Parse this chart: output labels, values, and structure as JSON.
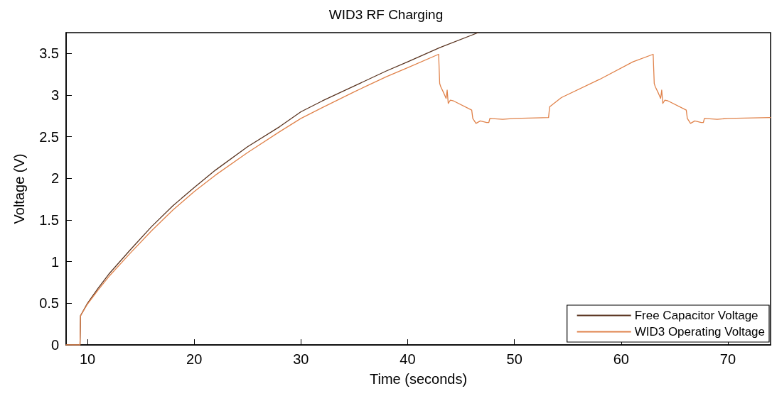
{
  "chart_data": {
    "type": "line",
    "title": "WID3 RF Charging",
    "xlabel": "Time (seconds)",
    "ylabel": "Voltage (V)",
    "xlim": [
      8,
      74
    ],
    "xticks": [
      10,
      20,
      30,
      40,
      50,
      60,
      70
    ],
    "ylim": [
      0,
      3.75
    ],
    "yticks": [
      0,
      0.5,
      1,
      1.5,
      2,
      2.5,
      3,
      3.5
    ],
    "grid": false,
    "legend": "bottom right",
    "marker": "none",
    "line_style": "solid",
    "series": [
      {
        "name": "Free Capacitor Voltage",
        "color": "#5a3420",
        "x": [
          8,
          9.3,
          9.35,
          10,
          11,
          12,
          14,
          16,
          18,
          20,
          22,
          25,
          28,
          30,
          32,
          35,
          38,
          40,
          43,
          46.6
        ],
        "values": [
          0,
          0,
          0.35,
          0.5,
          0.68,
          0.85,
          1.14,
          1.42,
          1.67,
          1.89,
          2.1,
          2.38,
          2.62,
          2.8,
          2.93,
          3.11,
          3.29,
          3.4,
          3.57,
          3.75
        ]
      },
      {
        "name": "WID3 Operating Voltage",
        "color": "#e0824a",
        "x": [
          8,
          9.3,
          9.35,
          10,
          11,
          12,
          14,
          16,
          18,
          20,
          22,
          25,
          28,
          30,
          32,
          35,
          38,
          40,
          42.9,
          43.0,
          43.1,
          43.4,
          43.6,
          43.7,
          43.8,
          44.0,
          44.3,
          46.0,
          46.1,
          46.4,
          46.8,
          47.4,
          47.6,
          47.7,
          48.9,
          50,
          53.2,
          53.3,
          54.4,
          58,
          61.1,
          63.0,
          63.1,
          63.2,
          63.5,
          63.7,
          63.8,
          63.9,
          64.1,
          64.4,
          66.1,
          66.2,
          66.5,
          66.9,
          67.5,
          67.7,
          67.8,
          69,
          70,
          74
        ],
        "values": [
          0,
          0,
          0.35,
          0.49,
          0.66,
          0.82,
          1.1,
          1.37,
          1.62,
          1.84,
          2.04,
          2.31,
          2.56,
          2.72,
          2.85,
          3.04,
          3.22,
          3.33,
          3.49,
          3.14,
          3.1,
          3.02,
          2.96,
          3.06,
          2.9,
          2.94,
          2.93,
          2.82,
          2.72,
          2.66,
          2.69,
          2.67,
          2.67,
          2.72,
          2.71,
          2.72,
          2.73,
          2.86,
          2.97,
          3.19,
          3.4,
          3.49,
          3.14,
          3.1,
          3.02,
          2.96,
          3.06,
          2.9,
          2.94,
          2.93,
          2.82,
          2.72,
          2.66,
          2.69,
          2.67,
          2.67,
          2.72,
          2.71,
          2.72,
          2.73
        ]
      }
    ]
  }
}
